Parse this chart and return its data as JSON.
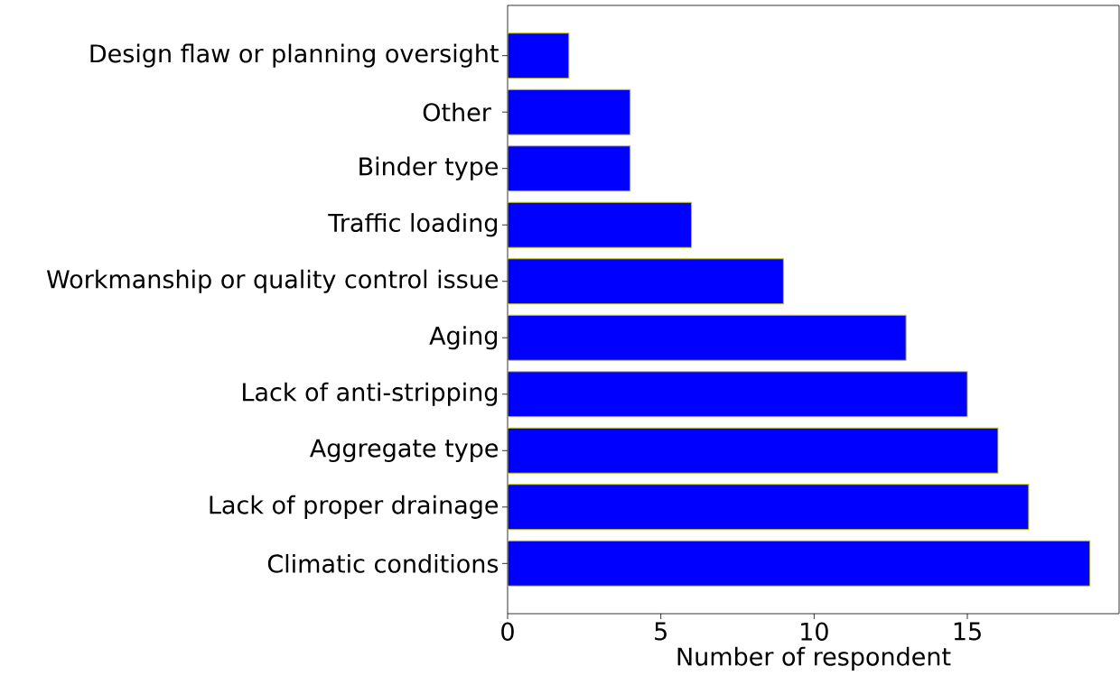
{
  "chart_data": {
    "type": "bar",
    "orientation": "horizontal",
    "categories": [
      "Design flaw or planning oversight",
      "Other ",
      "Binder type",
      "Traffic loading",
      "Workmanship or quality control issue",
      "Aging",
      "Lack of anti-stripping",
      "Aggregate type",
      "Lack of proper drainage",
      "Climatic conditions"
    ],
    "values": [
      2,
      4,
      4,
      6,
      9,
      13,
      15,
      16,
      17,
      19
    ],
    "color": "#0000ff",
    "xlabel": "Number of respondent",
    "xlim": [
      0,
      19.95
    ],
    "xticks": [
      0,
      5,
      10,
      15
    ],
    "grid": false
  }
}
